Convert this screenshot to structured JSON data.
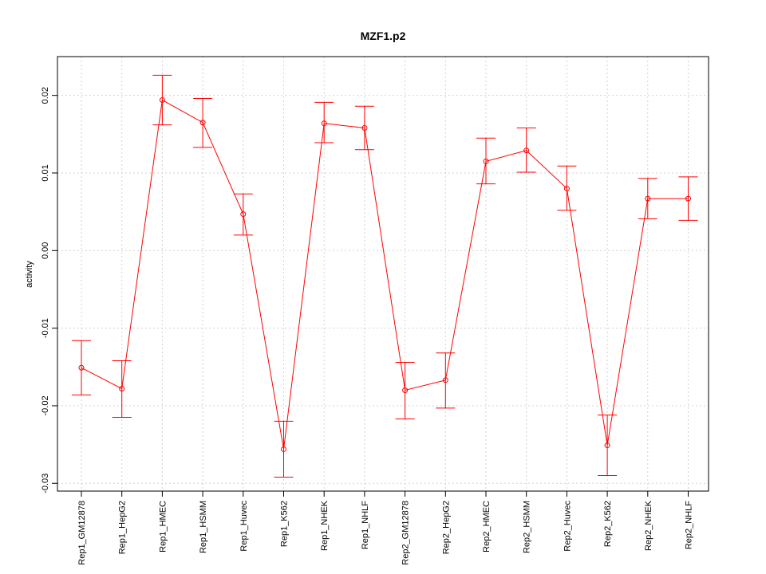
{
  "chart_data": {
    "type": "line",
    "title": "MZF1.p2",
    "xlabel": "",
    "ylabel": "activity",
    "ylim": [
      -0.031,
      0.025
    ],
    "yticks": [
      -0.03,
      -0.02,
      -0.01,
      0.0,
      0.01,
      0.02
    ],
    "ytick_labels": [
      "-0.03",
      "-0.02",
      "-0.01",
      "0.00",
      "0.01",
      "0.02"
    ],
    "grid": true,
    "color": "#ff0000",
    "categories": [
      "Rep1_GM12878",
      "Rep1_HepG2",
      "Rep1_HMEC",
      "Rep1_HSMM",
      "Rep1_Huvec",
      "Rep1_K562",
      "Rep1_NHEK",
      "Rep1_NHLF",
      "Rep2_GM12878",
      "Rep2_HepG2",
      "Rep2_HMEC",
      "Rep2_HSMM",
      "Rep2_Huvec",
      "Rep2_K562",
      "Rep2_NHEK",
      "Rep2_NHLF"
    ],
    "values": [
      -0.0151,
      -0.0178,
      0.0194,
      0.0165,
      0.0047,
      -0.0256,
      0.0164,
      0.0158,
      -0.018,
      -0.0167,
      0.0115,
      0.0129,
      0.008,
      -0.0251,
      0.0067,
      0.0067
    ],
    "err_low": [
      -0.0186,
      -0.0215,
      0.0162,
      0.0133,
      0.002,
      -0.0292,
      0.0139,
      0.013,
      -0.0217,
      -0.0203,
      0.0086,
      0.0101,
      0.0052,
      -0.029,
      0.0041,
      0.0039
    ],
    "err_high": [
      -0.0116,
      -0.0142,
      0.0226,
      0.0196,
      0.0073,
      -0.022,
      0.0191,
      0.0186,
      -0.0144,
      -0.0132,
      0.0145,
      0.0158,
      0.0109,
      -0.0212,
      0.0093,
      0.0095
    ],
    "line_segments": [
      [
        0,
        1
      ],
      [
        1,
        2
      ],
      [
        2,
        3
      ],
      [
        3,
        4
      ],
      [
        4,
        5
      ],
      [
        5,
        6
      ],
      [
        6,
        7
      ],
      [
        7,
        8
      ],
      [
        8,
        9
      ],
      [
        9,
        10
      ],
      [
        10,
        11
      ],
      [
        11,
        12
      ],
      [
        12,
        13
      ],
      [
        13,
        14
      ],
      [
        14,
        15
      ]
    ]
  }
}
